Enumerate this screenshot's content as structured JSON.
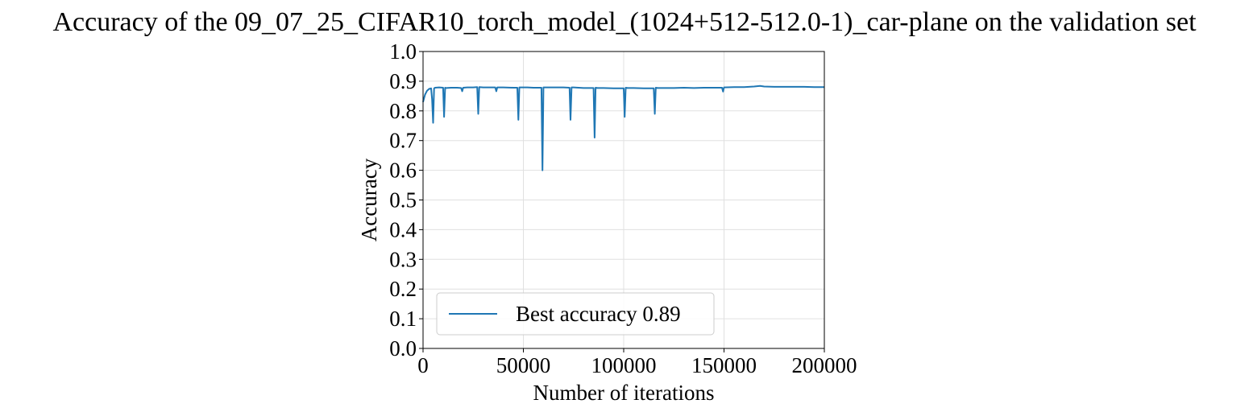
{
  "chart_data": {
    "type": "line",
    "title": "Accuracy of the 09_07_25_CIFAR10_torch_model_(1024+512-512.0-1)_car-plane on the validation set",
    "xlabel": "Number of iterations",
    "ylabel": "Accuracy",
    "xlim": [
      0,
      200000
    ],
    "ylim": [
      0,
      1.0
    ],
    "grid": true,
    "legend_placement": "lower-left",
    "x_ticks": [
      0,
      50000,
      100000,
      150000,
      200000
    ],
    "x_tick_labels": [
      "0",
      "50000",
      "100000",
      "150000",
      "200000"
    ],
    "y_ticks": [
      0.0,
      0.1,
      0.2,
      0.3,
      0.4,
      0.5,
      0.6,
      0.7,
      0.8,
      0.9,
      1.0
    ],
    "y_tick_labels": [
      "0.0",
      "0.1",
      "0.2",
      "0.3",
      "0.4",
      "0.5",
      "0.6",
      "0.7",
      "0.8",
      "0.9",
      "1.0"
    ],
    "series": [
      {
        "name": "Best accuracy 0.89",
        "color": "#1f77b4",
        "x": [
          0,
          1000,
          2000,
          3000,
          4000,
          4500,
          5000,
          5500,
          6000,
          8000,
          10000,
          10500,
          11000,
          11500,
          14000,
          17000,
          19000,
          19500,
          20000,
          22000,
          25000,
          27000,
          27500,
          28000,
          30000,
          35000,
          36000,
          36500,
          37000,
          40000,
          45000,
          47000,
          47500,
          48000,
          52000,
          55000,
          59000,
          59500,
          60000,
          61000,
          65000,
          70000,
          73000,
          73500,
          74000,
          75000,
          80000,
          85000,
          85500,
          86000,
          87000,
          90000,
          95000,
          100000,
          100500,
          101000,
          102000,
          105000,
          110000,
          115000,
          115500,
          116000,
          117000,
          120000,
          125000,
          130000,
          135000,
          140000,
          145000,
          149000,
          149500,
          150000,
          155000,
          160000,
          165000,
          168000,
          170000,
          175000,
          180000,
          185000,
          190000,
          195000,
          200000
        ],
        "y": [
          0.83,
          0.855,
          0.868,
          0.874,
          0.876,
          0.84,
          0.76,
          0.876,
          0.878,
          0.879,
          0.878,
          0.78,
          0.878,
          0.877,
          0.878,
          0.878,
          0.877,
          0.866,
          0.878,
          0.879,
          0.879,
          0.88,
          0.79,
          0.88,
          0.879,
          0.879,
          0.879,
          0.866,
          0.879,
          0.879,
          0.878,
          0.878,
          0.77,
          0.879,
          0.879,
          0.878,
          0.878,
          0.6,
          0.879,
          0.879,
          0.879,
          0.879,
          0.878,
          0.77,
          0.879,
          0.879,
          0.877,
          0.877,
          0.71,
          0.878,
          0.877,
          0.877,
          0.876,
          0.876,
          0.78,
          0.878,
          0.877,
          0.877,
          0.876,
          0.876,
          0.79,
          0.878,
          0.877,
          0.877,
          0.877,
          0.878,
          0.877,
          0.878,
          0.878,
          0.878,
          0.865,
          0.879,
          0.88,
          0.88,
          0.882,
          0.884,
          0.882,
          0.881,
          0.881,
          0.881,
          0.881,
          0.88,
          0.88
        ]
      }
    ]
  }
}
